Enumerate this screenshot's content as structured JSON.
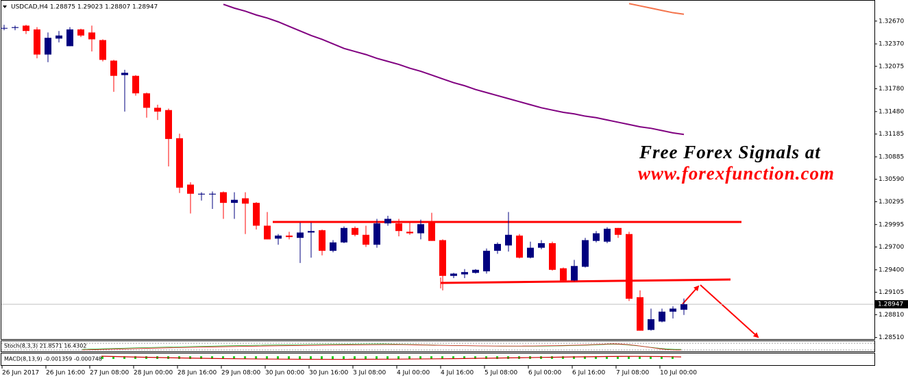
{
  "chart_data": {
    "type": "candlestick",
    "header": "USDCAD,H4 1.28875 1.29023 1.28807 1.28947",
    "watermark_line1": "Free Forex Signals at",
    "watermark_line2": "www.forexfunction.com",
    "stoch_label": "Stoch(8,3,3) 21.8571 16.4302",
    "macd_label": "MACD(8,13,9) -0.001359 -0.000748",
    "categories": [
      "26 Jun 2017",
      null,
      null,
      null,
      "26 Jun 16:00",
      null,
      null,
      null,
      "27 Jun 08:00",
      null,
      null,
      null,
      "28 Jun 00:00",
      null,
      null,
      null,
      "28 Jun 16:00",
      null,
      null,
      null,
      "29 Jun 08:00",
      null,
      null,
      null,
      "30 Jun 00:00",
      null,
      null,
      null,
      "30 Jun 16:00",
      null,
      null,
      null,
      "3 Jul 08:00",
      null,
      null,
      null,
      "4 Jul 00:00",
      null,
      null,
      null,
      "4 Jul 16:00",
      null,
      null,
      null,
      "5 Jul 08:00",
      null,
      null,
      null,
      "6 Jul 00:00",
      null,
      null,
      null,
      "6 Jul 16:00",
      null,
      null,
      null,
      "7 Jul 08:00",
      null,
      null,
      null,
      "10 Jul 00:00",
      null,
      null
    ],
    "open": [
      1.3258,
      1.3258,
      1.3261,
      1.3256,
      1.3223,
      1.3244,
      1.3234,
      1.3256,
      1.3252,
      1.3242,
      1.3215,
      1.3196,
      1.3195,
      1.3172,
      1.3153,
      1.315,
      1.3113,
      1.3052,
      1.3039,
      1.3039,
      1.3042,
      1.3028,
      1.3034,
      1.3028,
      1.2998,
      1.2981,
      1.2985,
      1.2982,
      1.2989,
      1.2992,
      1.2965,
      1.2976,
      1.2995,
      1.2986,
      1.2973,
      1.3001,
      1.3001,
      1.299,
      1.2988,
      1.3003,
      1.2979,
      1.2932,
      1.2934,
      1.2936,
      1.2938,
      1.2965,
      1.2972,
      1.2985,
      1.2956,
      1.2969,
      1.2975,
      1.2942,
      1.2926,
      1.2944,
      1.2978,
      1.2977,
      1.2995,
      1.2987,
      1.2904,
      1.2861,
      1.2872,
      1.2885,
      1.28875
    ],
    "high": [
      1.3262,
      1.3261,
      1.3262,
      1.3259,
      1.3252,
      1.3254,
      1.3259,
      1.3257,
      1.3261,
      1.3243,
      1.3216,
      1.3203,
      1.3196,
      1.3173,
      1.3157,
      1.3152,
      1.3119,
      1.3055,
      1.3042,
      1.3043,
      1.3043,
      1.3042,
      1.3042,
      1.3029,
      1.3016,
      1.2987,
      1.299,
      1.3002,
      1.3002,
      1.2993,
      1.2979,
      1.2997,
      1.2997,
      1.2998,
      1.3007,
      1.3011,
      1.3007,
      1.3003,
      1.3006,
      1.3015,
      1.298,
      1.2936,
      1.2941,
      1.2941,
      1.2968,
      1.2976,
      1.3016,
      1.2987,
      1.2977,
      1.2979,
      1.2977,
      1.2943,
      1.2953,
      1.2982,
      1.2991,
      1.2996,
      1.2995,
      1.299,
      1.2913,
      1.2889,
      1.2889,
      1.2892,
      1.29023
    ],
    "low": [
      1.3255,
      1.3255,
      1.325,
      1.3218,
      1.3213,
      1.3239,
      1.3234,
      1.3246,
      1.3227,
      1.3214,
      1.3174,
      1.3148,
      1.3169,
      1.314,
      1.3137,
      1.3076,
      1.3041,
      1.3014,
      1.3031,
      1.302,
      1.3007,
      1.3007,
      1.2987,
      1.2993,
      1.298,
      1.2973,
      1.298,
      1.2949,
      1.2956,
      1.2959,
      1.2963,
      1.2975,
      1.2984,
      1.297,
      1.2969,
      1.2998,
      1.2984,
      1.2986,
      1.298,
      1.2978,
      1.2913,
      1.2929,
      1.2929,
      1.2935,
      1.2935,
      1.2961,
      1.2964,
      1.2955,
      1.2955,
      1.2967,
      1.2939,
      1.2925,
      1.2925,
      1.2943,
      1.2976,
      1.2975,
      1.2982,
      1.2899,
      1.286,
      1.286,
      1.2871,
      1.2876,
      1.28807
    ],
    "close": [
      1.3258,
      1.3259,
      1.3254,
      1.3223,
      1.3245,
      1.3248,
      1.3256,
      1.3248,
      1.3243,
      1.3216,
      1.3195,
      1.3199,
      1.3172,
      1.3153,
      1.3148,
      1.3112,
      1.3048,
      1.304,
      1.304,
      1.304,
      1.3028,
      1.3032,
      1.3027,
      1.2998,
      1.298,
      1.2985,
      1.2983,
      1.2989,
      1.2991,
      1.2965,
      1.2976,
      1.2995,
      1.2986,
      1.2973,
      1.3001,
      1.3007,
      1.2991,
      1.2988,
      1.3,
      1.2978,
      1.2932,
      1.2935,
      1.2937,
      1.294,
      1.2965,
      1.2974,
      1.2986,
      1.2956,
      1.2969,
      1.2975,
      1.294,
      1.2926,
      1.2945,
      1.2979,
      1.2988,
      1.2994,
      1.2986,
      1.2902,
      1.286,
      1.2875,
      1.2885,
      1.2889,
      1.28947
    ],
    "up_color": "#00007f",
    "down_color": "#ff0000",
    "lines": [
      {
        "color": "#800080",
        "values": [
          null,
          null,
          null,
          null,
          null,
          null,
          null,
          null,
          null,
          null,
          null,
          null,
          null,
          null,
          null,
          null,
          null,
          null,
          null,
          null,
          1.3289,
          1.3284,
          1.328,
          1.3275,
          1.3271,
          1.3266,
          1.326,
          1.3254,
          1.3248,
          1.3243,
          1.3237,
          1.3231,
          1.3227,
          1.3223,
          1.3218,
          1.3214,
          1.321,
          1.3205,
          1.3201,
          1.3196,
          1.3191,
          1.3186,
          1.3182,
          1.3177,
          1.3173,
          1.3169,
          1.3165,
          1.3161,
          1.3157,
          1.3153,
          1.315,
          1.3147,
          1.3145,
          1.3142,
          1.314,
          1.3137,
          1.3134,
          1.3131,
          1.3128,
          1.3126,
          1.3123,
          1.312,
          1.3118
        ]
      },
      {
        "color": "#f4734b",
        "values": [
          null,
          null,
          null,
          null,
          null,
          null,
          null,
          null,
          null,
          null,
          null,
          null,
          null,
          null,
          null,
          null,
          null,
          null,
          null,
          null,
          null,
          null,
          null,
          null,
          null,
          null,
          null,
          null,
          null,
          null,
          null,
          null,
          null,
          null,
          null,
          null,
          null,
          null,
          null,
          null,
          null,
          null,
          null,
          null,
          null,
          null,
          null,
          null,
          null,
          null,
          null,
          null,
          null,
          null,
          null,
          null,
          null,
          1.329,
          1.3287,
          1.3284,
          1.3281,
          1.3278,
          1.3276
        ]
      }
    ],
    "last_price": 1.28947,
    "ylim": [
      1.2848,
      1.3292
    ],
    "yticks": [
      {
        "value": 1.3267,
        "label": "1.32670"
      },
      {
        "value": 1.3237,
        "label": "1.32370"
      },
      {
        "value": 1.32075,
        "label": "1.32075"
      },
      {
        "value": 1.3178,
        "label": "1.31780"
      },
      {
        "value": 1.3148,
        "label": "1.31480"
      },
      {
        "value": 1.31185,
        "label": "1.31185"
      },
      {
        "value": 1.30885,
        "label": "1.30885"
      },
      {
        "value": 1.3059,
        "label": "1.30590"
      },
      {
        "value": 1.30295,
        "label": "1.30295"
      },
      {
        "value": 1.29995,
        "label": "1.29995"
      },
      {
        "value": 1.297,
        "label": "1.29700"
      },
      {
        "value": 1.294,
        "label": "1.29400"
      },
      {
        "value": 1.29105,
        "label": "1.29105"
      },
      {
        "value": 1.2881,
        "label": "1.28810"
      },
      {
        "value": 1.2851,
        "label": "1.28510"
      }
    ]
  }
}
